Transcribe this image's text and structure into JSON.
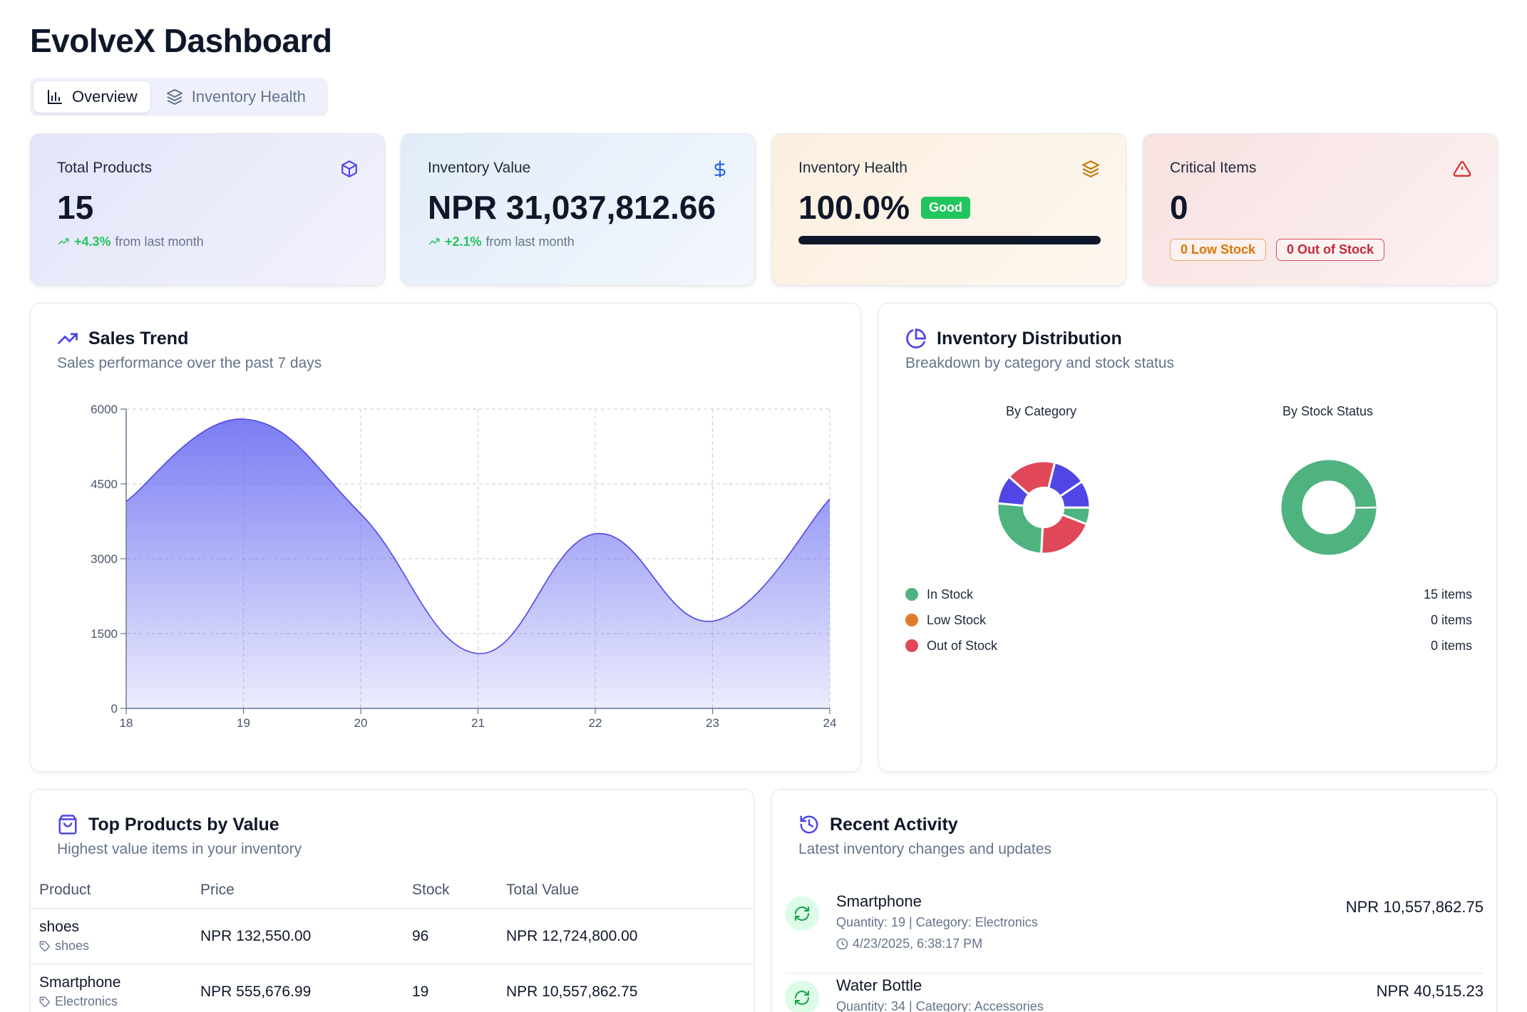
{
  "app": {
    "title": "EvolveX Dashboard"
  },
  "tabs": [
    {
      "label": "Overview",
      "icon": "bar-chart-icon",
      "active": true
    },
    {
      "label": "Inventory Health",
      "icon": "layers-icon",
      "active": false
    }
  ],
  "stats": {
    "total_products": {
      "label": "Total Products",
      "value": "15",
      "trend": "+4.3%",
      "trend_suffix": "from last month",
      "icon": "package-icon"
    },
    "inventory_value": {
      "label": "Inventory Value",
      "value": "NPR 31,037,812.66",
      "trend": "+2.1%",
      "trend_suffix": "from last month",
      "icon": "dollar-icon"
    },
    "inventory_health": {
      "label": "Inventory Health",
      "value": "100.0%",
      "badge": "Good",
      "progress": 1.0,
      "icon": "layers-icon"
    },
    "critical_items": {
      "label": "Critical Items",
      "value": "0",
      "low_stock_badge": "0 Low Stock",
      "out_of_stock_badge": "0 Out of Stock",
      "icon": "alert-triangle-icon"
    }
  },
  "sales_trend": {
    "title": "Sales Trend",
    "subtitle": "Sales performance over the past 7 days",
    "icon": "trending-up-icon"
  },
  "chart_data": {
    "type": "area",
    "x": [
      18,
      19,
      20,
      21,
      22,
      23,
      24
    ],
    "values": [
      4150,
      5800,
      3900,
      1100,
      3500,
      1750,
      4200
    ],
    "ylim": [
      0,
      6000
    ],
    "yticks": [
      0,
      1500,
      3000,
      4500,
      6000
    ],
    "grid": true,
    "color": "#6366f1"
  },
  "distribution": {
    "title": "Inventory Distribution",
    "subtitle": "Breakdown by category and stock status",
    "icon": "pie-chart-icon",
    "by_category_title": "By Category",
    "by_stock_title": "By Stock Status",
    "legend": [
      {
        "label": "In Stock",
        "count": "15 items",
        "color": "#4fb380"
      },
      {
        "label": "Low Stock",
        "count": "0 items",
        "color": "#e07b2c"
      },
      {
        "label": "Out of Stock",
        "count": "0 items",
        "color": "#e0485a"
      }
    ]
  },
  "top_products": {
    "title": "Top Products by Value",
    "subtitle": "Highest value items in your inventory",
    "icon": "shopping-bag-icon",
    "columns": [
      "Product",
      "Price",
      "Stock",
      "Total Value"
    ],
    "rows": [
      {
        "name": "shoes",
        "tag": "shoes",
        "price": "NPR 132,550.00",
        "stock": "96",
        "total": "NPR 12,724,800.00"
      },
      {
        "name": "Smartphone",
        "tag": "Electronics",
        "price": "NPR 555,676.99",
        "stock": "19",
        "total": "NPR 10,557,862.75"
      }
    ]
  },
  "activity": {
    "title": "Recent Activity",
    "subtitle": "Latest inventory changes and updates",
    "icon": "history-icon",
    "items": [
      {
        "name": "Smartphone",
        "meta": "Quantity: 19 | Category: Electronics",
        "time": "4/23/2025, 6:38:17 PM",
        "value": "NPR 10,557,862.75"
      },
      {
        "name": "Water Bottle",
        "meta": "Quantity: 34 | Category: Accessories",
        "time": "",
        "value": "NPR 40,515.23"
      }
    ]
  }
}
